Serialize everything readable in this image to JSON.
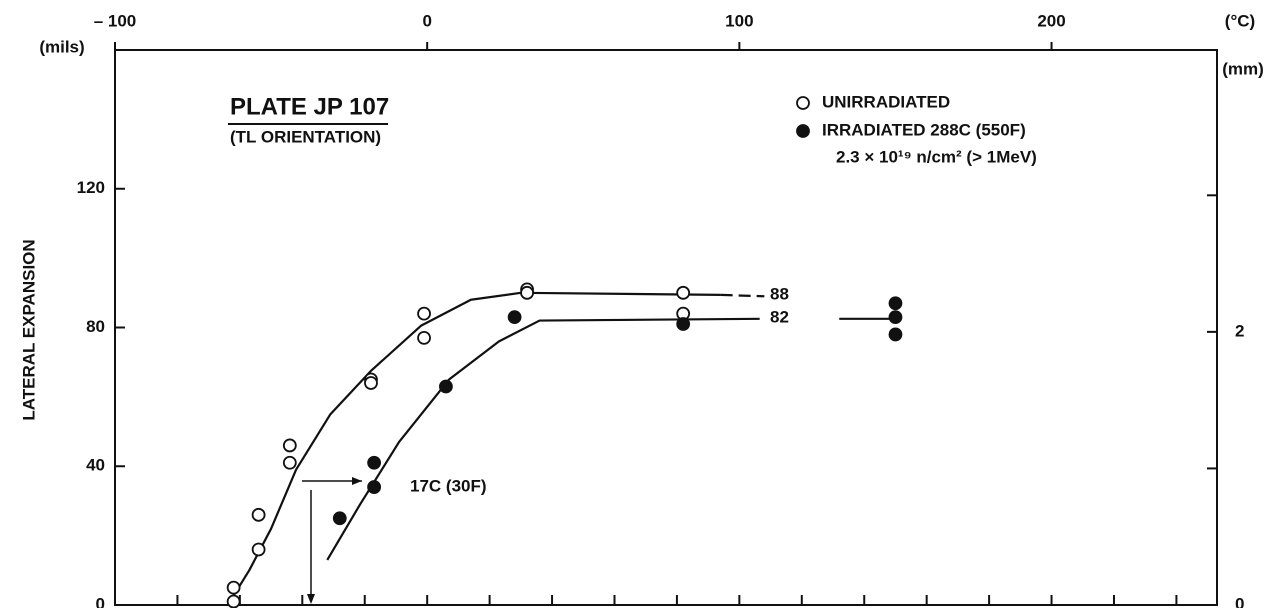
{
  "chart_data": {
    "type": "scatter",
    "title": "PLATE JP 107",
    "subtitle": "(TL ORIENTATION)",
    "ylabel": "LATERAL EXPANSION",
    "yunit": "(mils)",
    "y2unit": "(mm)",
    "xunit": "(°C)",
    "xlim": [
      -100,
      253
    ],
    "xticks": [
      {
        "value": -100,
        "label": "– 100"
      },
      0,
      100,
      200
    ],
    "xminor": [
      -80,
      -60,
      -40,
      -20,
      0,
      20,
      40,
      60,
      80,
      100,
      120,
      140,
      160,
      180,
      200,
      220,
      240
    ],
    "ylim": [
      0,
      160
    ],
    "yticks": [
      0,
      40,
      80,
      120
    ],
    "y2lim": [
      0,
      4.064
    ],
    "y2ticks": [
      0,
      2
    ],
    "y2minor": [
      1,
      3
    ],
    "series": [
      {
        "name": "UNIRRADIATED",
        "marker": "open",
        "color": "#111111",
        "x": [
          -62,
          -62,
          -54,
          -54,
          -44,
          -44,
          -18,
          -18,
          -1,
          -1,
          32,
          32,
          82,
          82
        ],
        "values": [
          5,
          1,
          16,
          26,
          41,
          46,
          65,
          64,
          77,
          84,
          91,
          90,
          90,
          84
        ]
      },
      {
        "name": "IRRADIATED 288C (550F)",
        "marker": "filled",
        "color": "#111111",
        "x": [
          -28,
          -17,
          -17,
          6,
          28,
          82,
          150,
          150,
          150
        ],
        "values": [
          25,
          34,
          41,
          63,
          83,
          81,
          87,
          83,
          78
        ]
      }
    ],
    "legend_note": "2.3 × 10¹⁹ n/cm² (> 1MeV)",
    "curves": [
      {
        "dash": false,
        "x": [
          -62.5,
          -57,
          -50,
          -42,
          -31,
          -18,
          -2,
          14,
          30,
          94
        ],
        "values": [
          2,
          10,
          22,
          39,
          55,
          67.5,
          80.5,
          88,
          90,
          89.4
        ]
      },
      {
        "dash": true,
        "x": [
          94,
          108
        ],
        "values": [
          89.4,
          89
        ]
      },
      {
        "dash": false,
        "x": [
          -32,
          -21.5,
          -9,
          7,
          23,
          36,
          106.5,
          119,
          132,
          151
        ],
        "values": [
          13,
          29,
          47,
          65,
          76,
          82,
          82.5,
          null,
          82.5,
          82.5
        ]
      }
    ],
    "annotations": [
      "17C (30F)",
      "88",
      "82"
    ]
  }
}
